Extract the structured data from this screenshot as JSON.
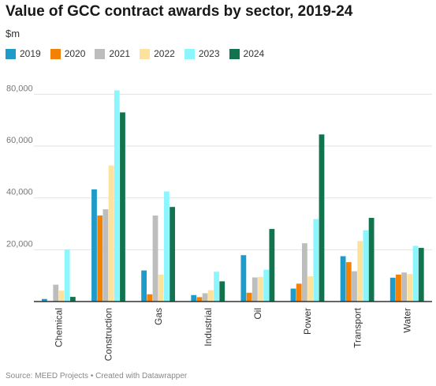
{
  "header": {
    "title": "Value of GCC contract awards by sector, 2019-24",
    "subtitle": "$m"
  },
  "footer": {
    "source": "Source: MEED Projects • Created with Datawrapper"
  },
  "chart_data": {
    "type": "bar",
    "title": "Value of GCC contract awards by sector, 2019-24",
    "ylabel": "$m",
    "categories": [
      "Chemical",
      "Construction",
      "Gas",
      "Industrial",
      "Oil",
      "Power",
      "Transport",
      "Water"
    ],
    "ylim": [
      0,
      85000
    ],
    "yticks": [
      {
        "value": 20000,
        "label": "20,000"
      },
      {
        "value": 40000,
        "label": "40,000"
      },
      {
        "value": 60000,
        "label": "60,000"
      },
      {
        "value": 80000,
        "label": "80,000"
      }
    ],
    "grid": true,
    "legend": "top-left",
    "series": [
      {
        "name": "2019",
        "color": "#1f9bc9",
        "values": [
          1000,
          43300,
          12000,
          2500,
          17900,
          5000,
          17500,
          9200
        ]
      },
      {
        "name": "2020",
        "color": "#f28205",
        "values": [
          0,
          33200,
          2800,
          1700,
          3400,
          6900,
          15200,
          10400
        ]
      },
      {
        "name": "2021",
        "color": "#bdbdbd",
        "values": [
          6500,
          35600,
          33200,
          3200,
          9300,
          22500,
          11700,
          11200
        ]
      },
      {
        "name": "2022",
        "color": "#fce29d",
        "values": [
          4200,
          52500,
          10400,
          4400,
          9500,
          9700,
          23300,
          10600
        ]
      },
      {
        "name": "2023",
        "color": "#8cf6ff",
        "values": [
          20000,
          81500,
          42500,
          11500,
          12300,
          31800,
          27500,
          21500
        ]
      },
      {
        "name": "2024",
        "color": "#11744f",
        "values": [
          1800,
          73000,
          36500,
          7800,
          28000,
          64500,
          32300,
          20700
        ]
      }
    ]
  }
}
